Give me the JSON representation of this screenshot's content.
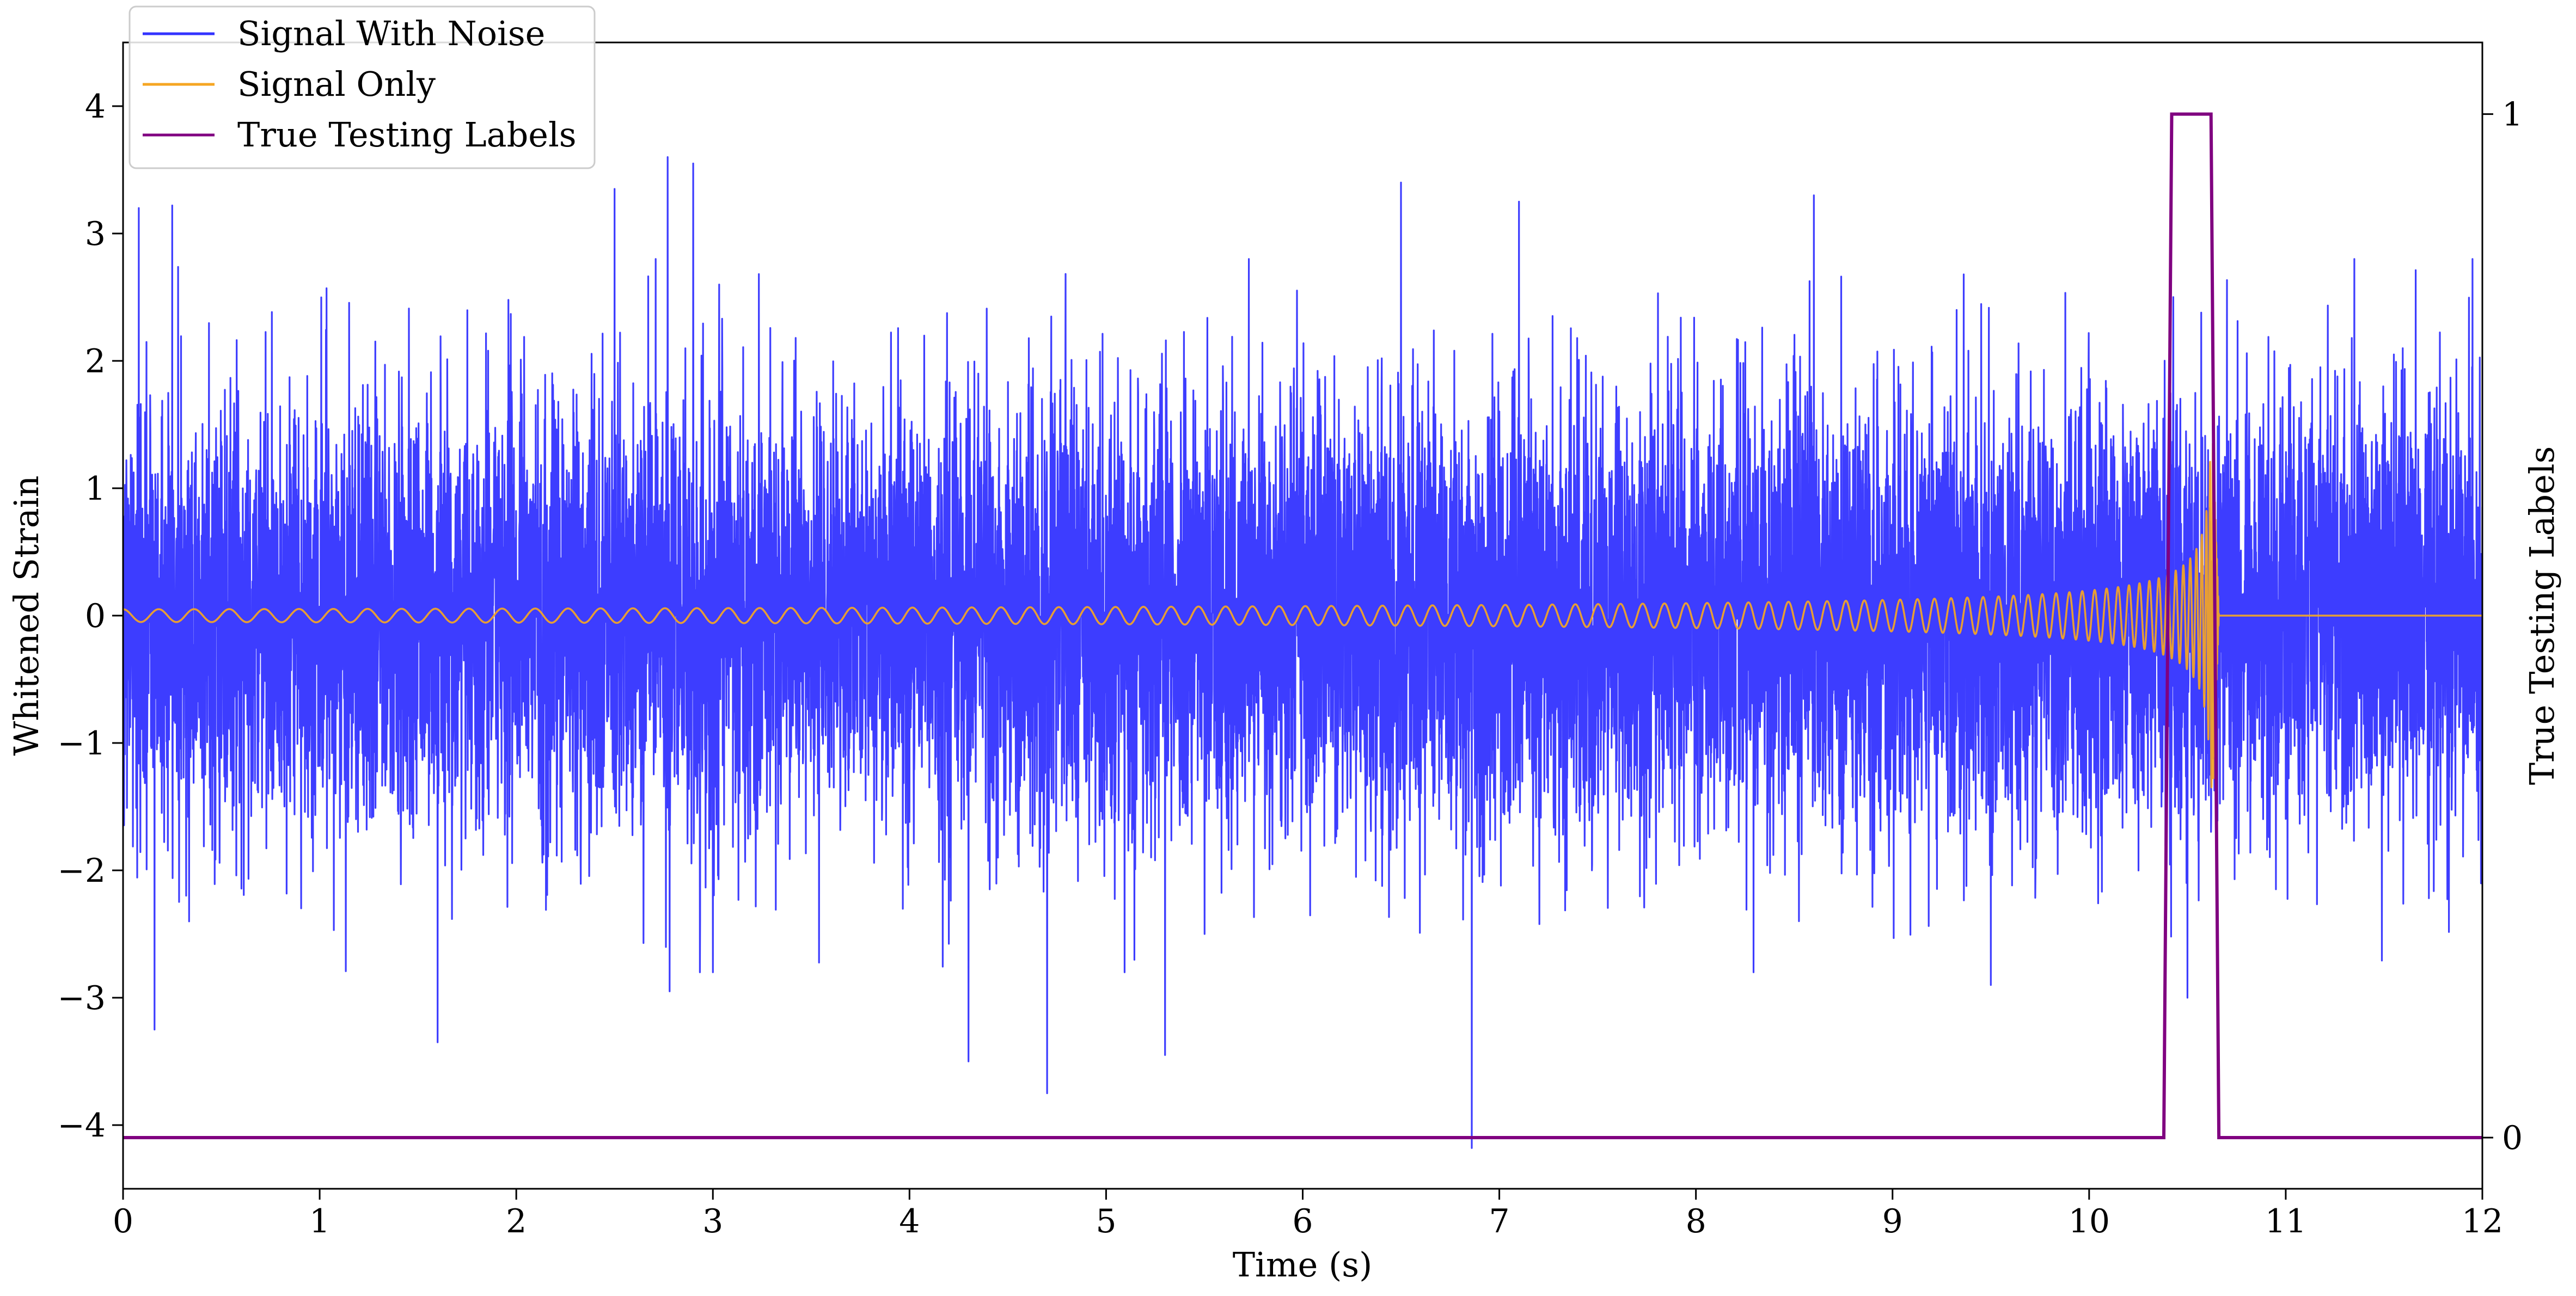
{
  "chart_data": {
    "type": "line",
    "xlabel": "Time (s)",
    "ylabel": "Whitened Strain",
    "y2label": "True Testing Labels",
    "xlim": [
      0,
      12
    ],
    "ylim": [
      -4.5,
      4.5
    ],
    "y2lim": [
      -0.05,
      1.07
    ],
    "x_ticks": [
      0,
      1,
      2,
      3,
      4,
      5,
      6,
      7,
      8,
      9,
      10,
      11,
      12
    ],
    "y_ticks": [
      -4,
      -3,
      -2,
      -1,
      0,
      1,
      2,
      3,
      4
    ],
    "y2_ticks": [
      0,
      1
    ],
    "grid": false,
    "legend": "top-left",
    "series": [
      {
        "name": "Signal With Noise",
        "axis": "left",
        "color": "#3333ff",
        "form": "noise",
        "noise_std": 0.85,
        "sample_rate_hz": 1000,
        "peaks": [
          {
            "x": 0.08,
            "y": 3.2
          },
          {
            "x": 0.16,
            "y": -3.25
          },
          {
            "x": 0.25,
            "y": 3.22
          },
          {
            "x": 1.6,
            "y": -3.35
          },
          {
            "x": 2.5,
            "y": 3.35
          },
          {
            "x": 2.77,
            "y": 3.6
          },
          {
            "x": 2.9,
            "y": 3.55
          },
          {
            "x": 2.78,
            "y": -2.95
          },
          {
            "x": 4.3,
            "y": -3.5
          },
          {
            "x": 4.7,
            "y": -3.75
          },
          {
            "x": 5.3,
            "y": -3.45
          },
          {
            "x": 6.5,
            "y": 3.4
          },
          {
            "x": 6.86,
            "y": -4.18
          },
          {
            "x": 7.1,
            "y": 3.25
          },
          {
            "x": 8.6,
            "y": 3.3
          },
          {
            "x": 9.5,
            "y": -2.9
          },
          {
            "x": 10.5,
            "y": -3.0
          },
          {
            "x": 11.95,
            "y": 2.8
          }
        ]
      },
      {
        "name": "Signal Only",
        "axis": "left",
        "color": "#f5a623",
        "form": "chirp",
        "start_amplitude": 0.05,
        "peak_amplitude": 1.35,
        "merger_time": 10.63,
        "ringdown_end": 10.66,
        "start_frequency_hz": 5.5,
        "after_merger_value": 0
      },
      {
        "name": "True Testing Labels",
        "axis": "right",
        "color": "#800080",
        "form": "step",
        "x": [
          0,
          10.38,
          10.42,
          10.62,
          10.66,
          12
        ],
        "y": [
          0,
          0,
          1,
          1,
          0,
          0
        ]
      }
    ]
  }
}
